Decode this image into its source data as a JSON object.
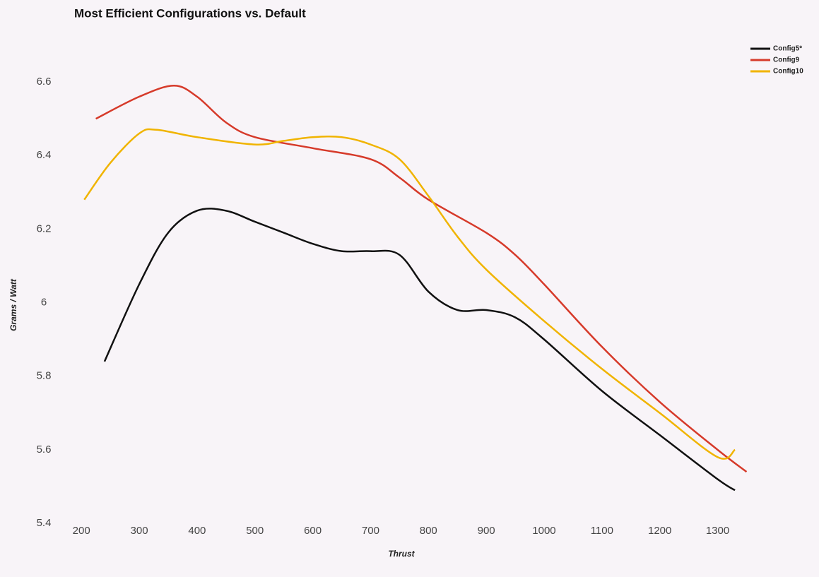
{
  "chart_data": {
    "type": "line",
    "title": "Most Efficient Configurations vs. Default",
    "x_label": "Thrust",
    "y_label": "Grams / Watt",
    "xlim": [
      190,
      1380
    ],
    "ylim": [
      5.4,
      6.7
    ],
    "xticks": [
      200,
      300,
      400,
      500,
      600,
      700,
      800,
      900,
      1000,
      1100,
      1200,
      1300
    ],
    "yticks": [
      5.4,
      5.6,
      5.8,
      6,
      6.2,
      6.4,
      6.6
    ],
    "legend": "top-right",
    "series": [
      {
        "name": "Config5*",
        "color": "#111111",
        "x": [
          240,
          300,
          350,
          400,
          450,
          500,
          550,
          600,
          650,
          700,
          750,
          800,
          850,
          900,
          950,
          1000,
          1100,
          1200,
          1300,
          1330
        ],
        "values": [
          5.84,
          6.05,
          6.19,
          6.25,
          6.25,
          6.22,
          6.19,
          6.16,
          6.14,
          6.14,
          6.13,
          6.03,
          5.98,
          5.98,
          5.96,
          5.9,
          5.76,
          5.64,
          5.52,
          5.49
        ]
      },
      {
        "name": "Config9",
        "color": "#d63a2a",
        "x": [
          225,
          300,
          360,
          400,
          450,
          500,
          600,
          700,
          750,
          800,
          900,
          950,
          1000,
          1100,
          1200,
          1300,
          1350
        ],
        "values": [
          6.5,
          6.56,
          6.59,
          6.56,
          6.49,
          6.45,
          6.42,
          6.39,
          6.34,
          6.28,
          6.19,
          6.13,
          6.05,
          5.88,
          5.73,
          5.6,
          5.54
        ]
      },
      {
        "name": "Config10",
        "color": "#f0b400",
        "x": [
          205,
          250,
          300,
          330,
          400,
          500,
          550,
          600,
          650,
          700,
          750,
          800,
          850,
          900,
          1000,
          1100,
          1200,
          1300,
          1330
        ],
        "values": [
          6.28,
          6.38,
          6.46,
          6.47,
          6.45,
          6.43,
          6.44,
          6.45,
          6.45,
          6.43,
          6.39,
          6.29,
          6.18,
          6.09,
          5.95,
          5.82,
          5.7,
          5.58,
          5.6
        ]
      }
    ]
  }
}
